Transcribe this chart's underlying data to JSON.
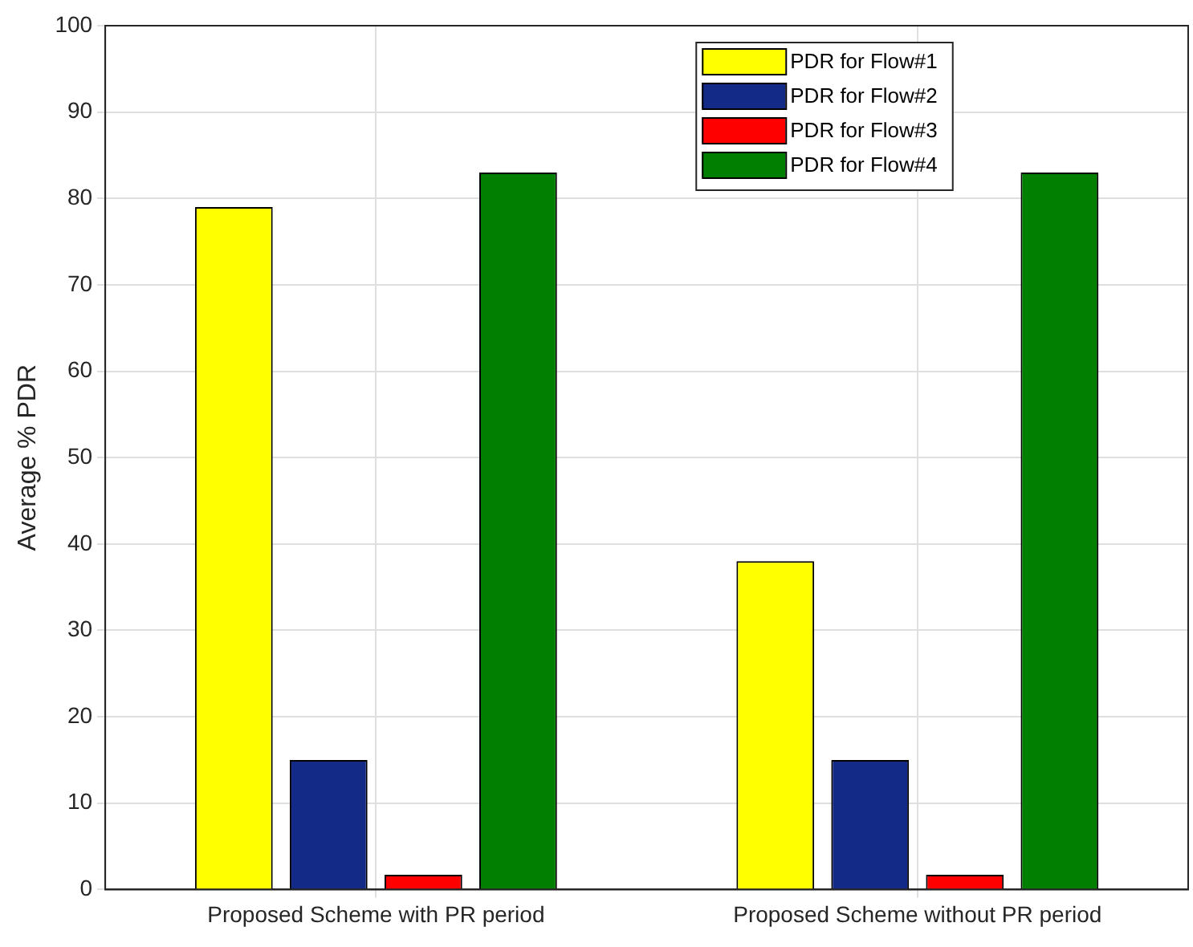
{
  "chart_data": {
    "type": "bar",
    "ylabel": "Average % PDR",
    "categories": [
      "Proposed Scheme with PR period",
      "Proposed Scheme without PR period"
    ],
    "series": [
      {
        "name": "PDR for Flow#1",
        "color": "#ffff00",
        "values": [
          79,
          38
        ]
      },
      {
        "name": "PDR for Flow#2",
        "color": "#142a87",
        "values": [
          15,
          15
        ]
      },
      {
        "name": "PDR for Flow#3",
        "color": "#ff0000",
        "values": [
          1.7,
          1.7
        ]
      },
      {
        "name": "PDR for Flow#4",
        "color": "#007f00",
        "values": [
          83,
          83
        ]
      }
    ],
    "ylim": [
      0,
      100
    ],
    "yticks": [
      0,
      10,
      20,
      30,
      40,
      50,
      60,
      70,
      80,
      90,
      100
    ],
    "grid": true,
    "legend": "top right"
  }
}
